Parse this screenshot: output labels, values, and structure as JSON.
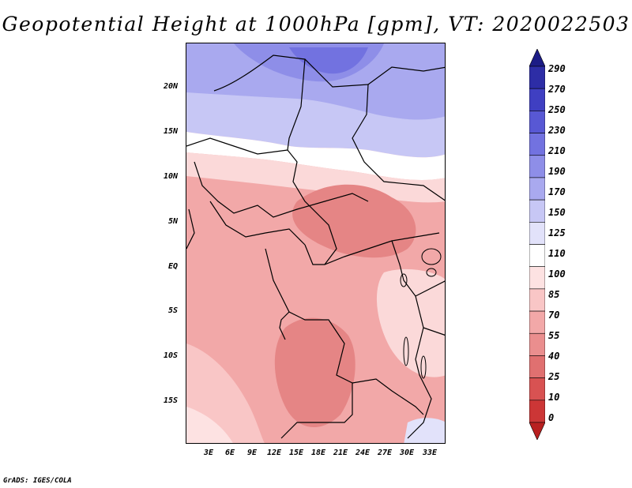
{
  "title": "Geopotential Height at 1000hPa [gpm], VT: 2020022503",
  "footer": "GrADS: IGES/COLA",
  "lat_labels": [
    "20N",
    "15N",
    "10N",
    "5N",
    "EQ",
    "5S",
    "10S",
    "15S"
  ],
  "lon_labels": [
    "3E",
    "6E",
    "9E",
    "12E",
    "15E",
    "18E",
    "21E",
    "24E",
    "27E",
    "30E",
    "33E"
  ],
  "colorbar": {
    "labels": [
      "290",
      "270",
      "250",
      "230",
      "210",
      "190",
      "170",
      "150",
      "125",
      "110",
      "100",
      "85",
      "70",
      "55",
      "40",
      "25",
      "10",
      "0"
    ],
    "colors": [
      "#1c1c86",
      "#2d2da6",
      "#3f3fc2",
      "#5858d4",
      "#7272e0",
      "#8e8ee8",
      "#a9a9ef",
      "#c7c7f5",
      "#e2e2fa",
      "#ffffff",
      "#fde2e2",
      "#f9c6c6",
      "#f2a8a8",
      "#ea8e8e",
      "#e07070",
      "#d85252",
      "#cc3636",
      "#b82020"
    ]
  },
  "colors": {
    "north_blue_dark": "#7c78e3",
    "north_blue": "#a9a9ef",
    "blue_light": "#d5d5f8",
    "pink_light": "#fbd9d9",
    "pink": "#f4b0b0",
    "pink_mid": "#ef9a9a",
    "red_mid": "#e58585"
  }
}
